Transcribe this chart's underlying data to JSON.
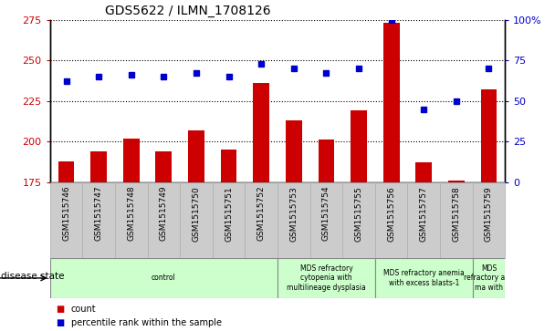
{
  "title": "GDS5622 / ILMN_1708126",
  "samples": [
    "GSM1515746",
    "GSM1515747",
    "GSM1515748",
    "GSM1515749",
    "GSM1515750",
    "GSM1515751",
    "GSM1515752",
    "GSM1515753",
    "GSM1515754",
    "GSM1515755",
    "GSM1515756",
    "GSM1515757",
    "GSM1515758",
    "GSM1515759"
  ],
  "counts": [
    188,
    194,
    202,
    194,
    207,
    195,
    236,
    213,
    201,
    219,
    273,
    187,
    176,
    232
  ],
  "percentile_ranks": [
    62,
    65,
    66,
    65,
    67,
    65,
    73,
    70,
    67,
    70,
    100,
    45,
    50,
    70
  ],
  "ylim_left": [
    175,
    275
  ],
  "ylim_right": [
    0,
    100
  ],
  "yticks_left": [
    175,
    200,
    225,
    250,
    275
  ],
  "yticks_right": [
    0,
    25,
    50,
    75,
    100
  ],
  "bar_color": "#cc0000",
  "dot_color": "#0000cc",
  "disease_groups": [
    {
      "label": "control",
      "start": 0,
      "end": 7,
      "color": "#ccffcc"
    },
    {
      "label": "MDS refractory\ncytopenia with\nmultilineage dysplasia",
      "start": 7,
      "end": 10,
      "color": "#ccffcc"
    },
    {
      "label": "MDS refractory anemia\nwith excess blasts-1",
      "start": 10,
      "end": 13,
      "color": "#ccffcc"
    },
    {
      "label": "MDS\nrefractory ane\nma with",
      "start": 13,
      "end": 14,
      "color": "#ccffcc"
    }
  ],
  "xlabel_disease": "disease state",
  "legend_count": "count",
  "legend_percentile": "percentile rank within the sample",
  "background_color": "#ffffff",
  "tick_label_color_left": "#cc0000",
  "tick_label_color_right": "#0000cc",
  "grid_color": "#000000",
  "sample_bg_color": "#cccccc"
}
